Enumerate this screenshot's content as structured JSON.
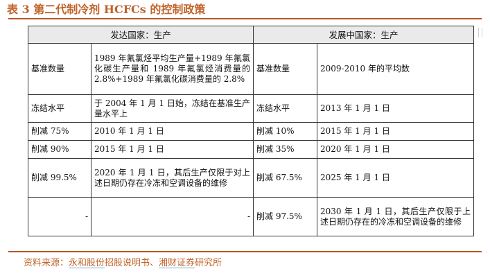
{
  "title": "表 3 第二代制冷剂 HCFCs 的控制政策",
  "table": {
    "headers": [
      "发达国家：生产",
      "发展中国家：生产"
    ],
    "rows": [
      {
        "dev_item": "基准数量",
        "dev_value": "1989 年氟氯烃平均生产量+1989 年氟氯化碳生产量和 1989 年氟氯烃消费量的 2.8%+1989 年氟氯化碳消费量的 2.8%",
        "dvg_item": "基准数量",
        "dvg_value": "2009-2010 年的平均数"
      },
      {
        "dev_item": "冻结水平",
        "dev_value": "于 2004 年 1 月 1 日始，冻结在基准生产量水平上",
        "dvg_item": "冻结水平",
        "dvg_value": "2013 年 1 月 1 日"
      },
      {
        "dev_item": "削减 75%",
        "dev_value": "2010 年 1 月 1 日",
        "dvg_item": "削减 10%",
        "dvg_value": "2015 年 1 月 1 日"
      },
      {
        "dev_item": "削减 90%",
        "dev_value": "2015 年 1 月 1 日",
        "dvg_item": "削减 35%",
        "dvg_value": "2020 年 1 月 1 日"
      },
      {
        "dev_item": "削减 99.5%",
        "dev_value": "2020 年 1 月 1 日，其后生产仅限于对上述日期仍存在冷冻和空调设备的维修",
        "dvg_item": "削减 67.5%",
        "dvg_value": "2025 年 1 月 1 日"
      },
      {
        "dev_item": "-",
        "dev_value": "-",
        "dvg_item": "削减 97.5%",
        "dvg_value": "2030 年 1 月 1 日，其后生产仅限于上述日期仍存在的冷冻和空调设备的维修"
      }
    ]
  },
  "source": {
    "prefix": "资料来源：",
    "link1": "永和股份",
    "middle": "招股说明书、",
    "link2": "湘财证券",
    "suffix": "研究所"
  }
}
